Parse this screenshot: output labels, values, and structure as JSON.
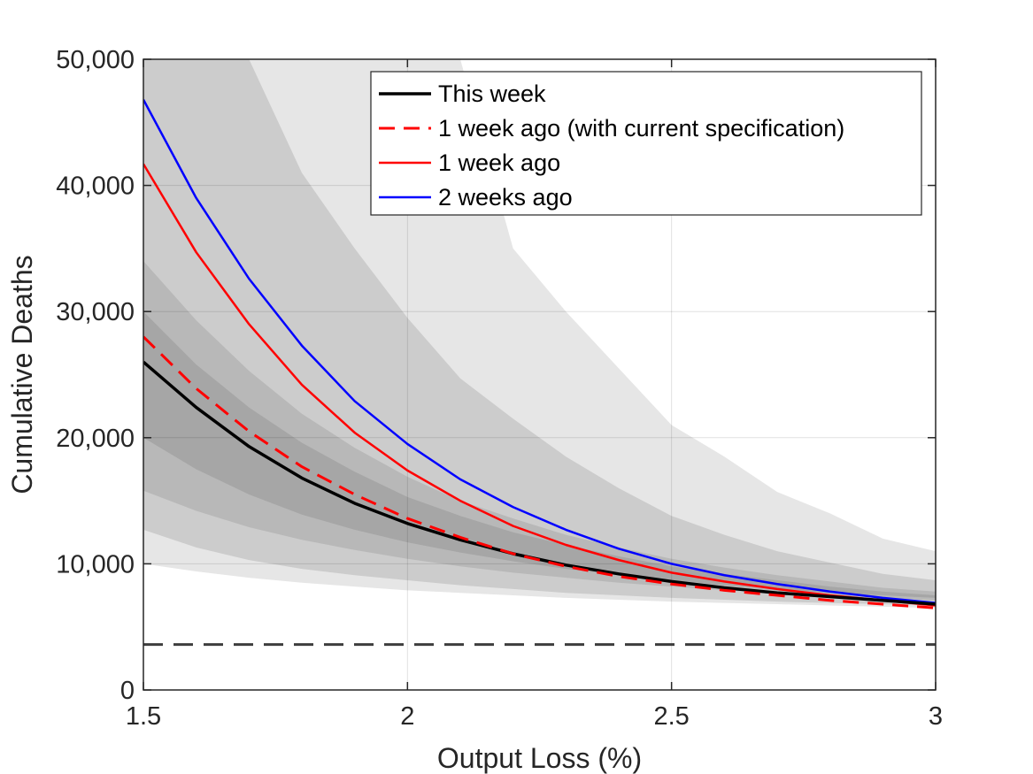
{
  "chart_data": {
    "type": "line",
    "xlabel": "Output Loss (%)",
    "ylabel": "Cumulative Deaths",
    "xlim": [
      1.5,
      3
    ],
    "ylim": [
      0,
      50000
    ],
    "x_ticks": [
      1.5,
      2,
      2.5,
      3
    ],
    "x_tick_labels": [
      "1.5",
      "2",
      "2.5",
      "3"
    ],
    "y_ticks": [
      0,
      10000,
      20000,
      30000,
      40000,
      50000
    ],
    "y_tick_labels": [
      "0",
      "10,000",
      "20,000",
      "30,000",
      "40,000",
      "50,000"
    ],
    "grid": true,
    "legend_position": "top-right",
    "x": [
      1.5,
      1.6,
      1.7,
      1.8,
      1.9,
      2.0,
      2.1,
      2.2,
      2.3,
      2.4,
      2.5,
      2.6,
      2.7,
      2.8,
      2.9,
      3.0
    ],
    "bands": [
      {
        "color": "#e6e6e6",
        "upper": [
          50000,
          50000,
          50000,
          50000,
          50000,
          50000,
          50000,
          35000,
          30000,
          25500,
          21000,
          18500,
          15700,
          14000,
          12000,
          11000
        ],
        "lower": [
          10000,
          9400,
          8900,
          8500,
          8200,
          7900,
          7700,
          7500,
          7300,
          7150,
          7000,
          6900,
          6800,
          6700,
          6600,
          6500
        ]
      },
      {
        "color": "#cccccc",
        "upper": [
          50000,
          50000,
          50000,
          41000,
          35000,
          29500,
          24700,
          21500,
          18500,
          16000,
          13800,
          12300,
          11000,
          10100,
          9200,
          8700
        ],
        "lower": [
          12700,
          11300,
          10300,
          9600,
          9100,
          8700,
          8300,
          8000,
          7700,
          7500,
          7300,
          7150,
          7000,
          6900,
          6800,
          6700
        ]
      },
      {
        "color": "#b8b8b8",
        "upper": [
          34000,
          29300,
          25300,
          21900,
          19200,
          16900,
          15000,
          13600,
          12300,
          11300,
          10400,
          9700,
          9100,
          8600,
          8100,
          7800
        ],
        "lower": [
          15800,
          14200,
          12900,
          11900,
          11100,
          10400,
          9800,
          9300,
          8900,
          8500,
          8200,
          7900,
          7700,
          7500,
          7300,
          7100
        ]
      },
      {
        "color": "#a6a6a6",
        "upper": [
          30000,
          25800,
          22400,
          19600,
          17300,
          15300,
          13800,
          12500,
          11500,
          10600,
          9800,
          9200,
          8700,
          8200,
          7800,
          7500
        ],
        "lower": [
          20000,
          17500,
          15500,
          13900,
          12700,
          11700,
          10900,
          10200,
          9600,
          9100,
          8700,
          8300,
          8000,
          7700,
          7500,
          7300
        ]
      }
    ],
    "reference_line": {
      "y": 3600,
      "style": "dashed",
      "color": "#3d3d3d"
    },
    "series": [
      {
        "name": "This week",
        "style": "solid",
        "color": "#000000",
        "width": 3.5,
        "values": [
          26000,
          22400,
          19300,
          16800,
          14800,
          13200,
          11900,
          10800,
          9900,
          9200,
          8600,
          8100,
          7700,
          7400,
          7100,
          6800
        ]
      },
      {
        "name": "1 week ago (with current specification)",
        "style": "dashed",
        "color": "#ff0000",
        "width": 3,
        "values": [
          28000,
          23900,
          20500,
          17700,
          15500,
          13600,
          12100,
          10800,
          9800,
          9000,
          8400,
          7900,
          7500,
          7100,
          6800,
          6500
        ]
      },
      {
        "name": "1 week ago",
        "style": "solid",
        "color": "#ff0000",
        "width": 2.5,
        "values": [
          41700,
          34700,
          29000,
          24200,
          20400,
          17400,
          15000,
          13000,
          11500,
          10300,
          9300,
          8600,
          8000,
          7500,
          7100,
          6700
        ]
      },
      {
        "name": "2 weeks ago",
        "style": "solid",
        "color": "#0000ff",
        "width": 2.5,
        "values": [
          46800,
          39000,
          32600,
          27300,
          22900,
          19500,
          16700,
          14500,
          12700,
          11200,
          10000,
          9100,
          8400,
          7800,
          7300,
          6900
        ]
      }
    ]
  }
}
